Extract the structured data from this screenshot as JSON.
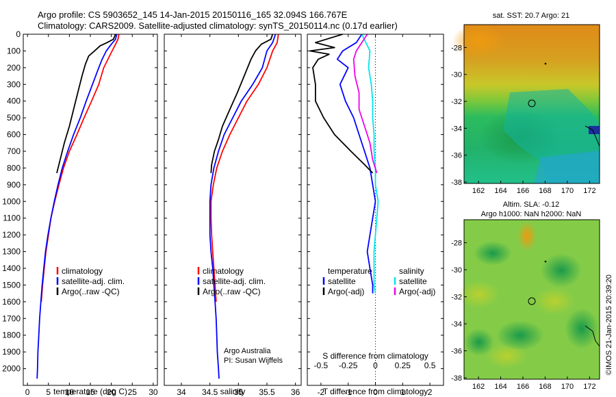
{
  "header": {
    "line1": "Argo profile: CS 5903652_145 14-Jan-2015 20150116_165 32.094S 166.767E",
    "line2": "Climatology: CARS2009. Satellite-adjusted climatology: synTS_20150114.nc (0.17d earlier)"
  },
  "watermark": "©IMOS 21-Jan-2015 20:39:20",
  "colors": {
    "climatology": "#ff0000",
    "satellite": "#0000ff",
    "argo": "#000000",
    "salinity_satellite": "#00e5ee",
    "salinity_argo": "#ee00ee"
  },
  "chart_data": [
    {
      "type": "line",
      "name": "temperature-profile",
      "xlabel": "temperature (deg C)",
      "ylabel": "",
      "xlim": [
        -1,
        31
      ],
      "ylim": [
        2100,
        0
      ],
      "xticks": [
        0,
        5,
        10,
        15,
        20,
        25,
        30
      ],
      "yticks": [
        0,
        100,
        200,
        300,
        400,
        500,
        600,
        700,
        800,
        900,
        1000,
        1100,
        1200,
        1300,
        1400,
        1500,
        1600,
        1700,
        1800,
        1900,
        2000
      ],
      "legend": {
        "placement": "bottom-center",
        "entries": [
          "climatology",
          "satellite-adj. clim.",
          "Argo(..raw -QC)"
        ]
      },
      "series": [
        {
          "name": "climatology",
          "color": "#ff0000",
          "points": [
            [
              21.8,
              0
            ],
            [
              21.6,
              30
            ],
            [
              21,
              60
            ],
            [
              20.2,
              100
            ],
            [
              19.2,
              150
            ],
            [
              18.2,
              200
            ],
            [
              17,
              300
            ],
            [
              15.3,
              400
            ],
            [
              13.5,
              500
            ],
            [
              11.8,
              600
            ],
            [
              10,
              700
            ],
            [
              8.6,
              800
            ],
            [
              7.5,
              900
            ],
            [
              6.5,
              1000
            ],
            [
              5.6,
              1100
            ],
            [
              5,
              1200
            ],
            [
              4.4,
              1300
            ],
            [
              4,
              1400
            ],
            [
              3.6,
              1500
            ],
            [
              3.3,
              1600
            ]
          ]
        },
        {
          "name": "satellite-adj. clim.",
          "color": "#0000ff",
          "points": [
            [
              21.3,
              0
            ],
            [
              21,
              30
            ],
            [
              20,
              60
            ],
            [
              18.8,
              100
            ],
            [
              17.8,
              150
            ],
            [
              17,
              200
            ],
            [
              15.5,
              300
            ],
            [
              14,
              400
            ],
            [
              12.6,
              500
            ],
            [
              11,
              600
            ],
            [
              9.6,
              700
            ],
            [
              8.3,
              800
            ],
            [
              7.3,
              900
            ],
            [
              6.4,
              1000
            ],
            [
              5.6,
              1100
            ],
            [
              4.9,
              1200
            ],
            [
              4.3,
              1300
            ],
            [
              3.9,
              1400
            ],
            [
              3.5,
              1500
            ],
            [
              3.2,
              1600
            ],
            [
              2.9,
              1700
            ],
            [
              2.7,
              1800
            ],
            [
              2.5,
              1900
            ],
            [
              2.4,
              2000
            ],
            [
              2.3,
              2060
            ]
          ]
        },
        {
          "name": "Argo(..raw -QC)",
          "color": "#000000",
          "points": [
            [
              21,
              0
            ],
            [
              20.5,
              30
            ],
            [
              19,
              50
            ],
            [
              17.3,
              70
            ],
            [
              16,
              100
            ],
            [
              14.6,
              130
            ],
            [
              13.8,
              180
            ],
            [
              13,
              250
            ],
            [
              12,
              350
            ],
            [
              11,
              450
            ],
            [
              10,
              550
            ],
            [
              8.8,
              650
            ],
            [
              7.8,
              750
            ],
            [
              7,
              830
            ]
          ]
        }
      ]
    },
    {
      "type": "line",
      "name": "salinity-profile",
      "xlabel": "salinity",
      "ylabel": "",
      "xlim": [
        33.7,
        36.1
      ],
      "ylim": [
        2100,
        0
      ],
      "xticks": [
        34,
        34.5,
        35,
        35.5,
        36
      ],
      "legend": {
        "placement": "bottom-center",
        "entries": [
          "climatology",
          "satellite-adj. clim.",
          "Argo(..raw -QC)"
        ]
      },
      "annotations": [
        "Argo Australia",
        "PI: Susan Wijffels"
      ],
      "series": [
        {
          "name": "climatology",
          "color": "#ff0000",
          "points": [
            [
              35.7,
              0
            ],
            [
              35.68,
              50
            ],
            [
              35.6,
              100
            ],
            [
              35.5,
              200
            ],
            [
              35.35,
              300
            ],
            [
              35.15,
              400
            ],
            [
              35,
              500
            ],
            [
              34.85,
              600
            ],
            [
              34.72,
              700
            ],
            [
              34.62,
              800
            ],
            [
              34.56,
              900
            ],
            [
              34.52,
              1000
            ],
            [
              34.52,
              1100
            ],
            [
              34.53,
              1200
            ],
            [
              34.55,
              1300
            ],
            [
              34.57,
              1400
            ],
            [
              34.59,
              1500
            ],
            [
              34.61,
              1600
            ]
          ]
        },
        {
          "name": "satellite-adj. clim.",
          "color": "#0000ff",
          "points": [
            [
              35.65,
              0
            ],
            [
              35.6,
              50
            ],
            [
              35.5,
              100
            ],
            [
              35.42,
              200
            ],
            [
              35.25,
              300
            ],
            [
              35.05,
              400
            ],
            [
              34.9,
              500
            ],
            [
              34.75,
              600
            ],
            [
              34.65,
              700
            ],
            [
              34.57,
              800
            ],
            [
              34.52,
              900
            ],
            [
              34.5,
              1000
            ],
            [
              34.5,
              1100
            ],
            [
              34.5,
              1200
            ],
            [
              34.52,
              1300
            ],
            [
              34.55,
              1400
            ],
            [
              34.57,
              1500
            ],
            [
              34.59,
              1600
            ],
            [
              34.61,
              1700
            ],
            [
              34.62,
              1800
            ],
            [
              34.63,
              1900
            ],
            [
              34.65,
              2000
            ],
            [
              34.66,
              2060
            ]
          ]
        },
        {
          "name": "Argo(..raw -QC)",
          "color": "#000000",
          "points": [
            [
              35.6,
              0
            ],
            [
              35.57,
              30
            ],
            [
              35.4,
              60
            ],
            [
              35.3,
              100
            ],
            [
              35.22,
              150
            ],
            [
              35.1,
              250
            ],
            [
              34.98,
              350
            ],
            [
              34.85,
              450
            ],
            [
              34.72,
              550
            ],
            [
              34.65,
              630
            ],
            [
              34.58,
              700
            ],
            [
              34.53,
              780
            ],
            [
              34.52,
              830
            ]
          ]
        }
      ]
    },
    {
      "type": "line",
      "name": "difference-profile",
      "xlabel": "T difference from climatology",
      "title": "S difference from climatology",
      "xlim": [
        -2.5,
        2.5
      ],
      "ylim": [
        2100,
        0
      ],
      "xticks": [
        -2,
        -1,
        0,
        1,
        2
      ],
      "top_ticks": [
        -0.5,
        -0.25,
        0,
        0.25,
        0.5
      ],
      "legend": {
        "placement": "bottom-center",
        "headers": [
          "temperature",
          "salinity"
        ],
        "entries": [
          "satellite",
          "Argo(-adj)",
          "satellite",
          "Argo(-adj)"
        ]
      },
      "series": [
        {
          "name": "temperature satellite",
          "color": "#0000ff",
          "points": [
            [
              -0.5,
              0
            ],
            [
              -0.7,
              50
            ],
            [
              -1.2,
              100
            ],
            [
              -1.4,
              150
            ],
            [
              -1,
              200
            ],
            [
              -1.3,
              300
            ],
            [
              -1.1,
              400
            ],
            [
              -0.8,
              500
            ],
            [
              -0.6,
              600
            ],
            [
              -0.4,
              700
            ],
            [
              -0.2,
              800
            ],
            [
              -0.1,
              900
            ],
            [
              0,
              1000
            ],
            [
              -0.1,
              1100
            ],
            [
              -0.2,
              1200
            ],
            [
              -0.3,
              1300
            ],
            [
              -0.2,
              1400
            ],
            [
              -0.1,
              1500
            ],
            [
              -0.1,
              1550
            ]
          ]
        },
        {
          "name": "temperature Argo(-adj)",
          "color": "#000000",
          "points": [
            [
              -1.2,
              0
            ],
            [
              -2.2,
              50
            ],
            [
              -1.5,
              80
            ],
            [
              -2.4,
              100
            ],
            [
              -1.7,
              120
            ],
            [
              -2.1,
              150
            ],
            [
              -2.3,
              200
            ],
            [
              -2.2,
              300
            ],
            [
              -2.2,
              400
            ],
            [
              -1.9,
              500
            ],
            [
              -1.5,
              600
            ],
            [
              -0.9,
              700
            ],
            [
              -0.4,
              780
            ],
            [
              -0.1,
              830
            ]
          ]
        },
        {
          "name": "salinity satellite",
          "color": "#00e5ee",
          "points": [
            [
              -0.5,
              0
            ],
            [
              -0.2,
              100
            ],
            [
              -0.25,
              200
            ],
            [
              -0.15,
              300
            ],
            [
              -0.1,
              400
            ],
            [
              -0.1,
              500
            ],
            [
              -0.05,
              600
            ],
            [
              -0.05,
              700
            ],
            [
              0,
              800
            ],
            [
              0,
              900
            ],
            [
              0.1,
              1000
            ],
            [
              0.05,
              1100
            ],
            [
              0,
              1200
            ],
            [
              -0.05,
              1300
            ],
            [
              -0.05,
              1400
            ],
            [
              -0.05,
              1500
            ],
            [
              0,
              1550
            ]
          ]
        },
        {
          "name": "salinity Argo(-adj)",
          "color": "#ee00ee",
          "points": [
            [
              -0.3,
              0
            ],
            [
              -0.5,
              50
            ],
            [
              -0.7,
              100
            ],
            [
              -0.8,
              150
            ],
            [
              -0.75,
              250
            ],
            [
              -0.6,
              350
            ],
            [
              -0.6,
              450
            ],
            [
              -0.4,
              550
            ],
            [
              -0.2,
              650
            ],
            [
              -0.1,
              750
            ],
            [
              0.05,
              830
            ]
          ]
        }
      ]
    },
    {
      "type": "heatmap",
      "name": "sst-map",
      "title": "sat. SST: 20.7   Argo: 21",
      "xticks": [
        162,
        164,
        166,
        168,
        170,
        172
      ],
      "yticks": [
        -28,
        -30,
        -32,
        -34,
        -36,
        -38
      ],
      "xlim": [
        160.7,
        172.9
      ],
      "ylim": [
        -38.1,
        -26.3
      ],
      "float_position": [
        166.767,
        -32.094
      ]
    },
    {
      "type": "heatmap",
      "name": "sla-map",
      "title": "Altim. SLA: -0.12",
      "subtitle": "Argo h1000: NaN  h2000: NaN",
      "xticks": [
        162,
        164,
        166,
        168,
        170,
        172
      ],
      "yticks": [
        -28,
        -30,
        -32,
        -34,
        -36,
        -38
      ],
      "xlim": [
        160.7,
        172.9
      ],
      "ylim": [
        -38.1,
        -26.3
      ],
      "float_position": [
        166.767,
        -32.094
      ]
    }
  ]
}
